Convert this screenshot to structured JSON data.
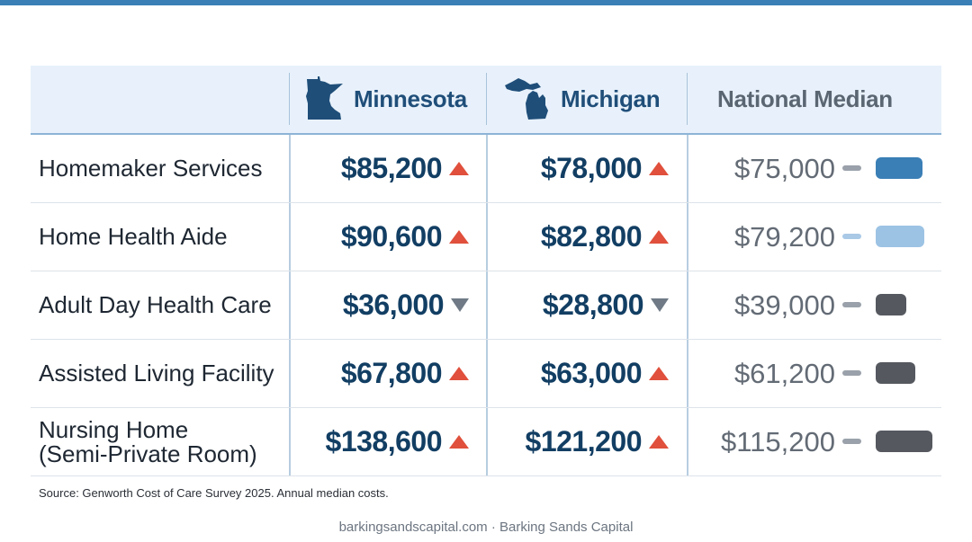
{
  "header": {
    "col1": "Minnesota",
    "col2": "Michigan",
    "col3": "National Median"
  },
  "rows": [
    {
      "label": [
        "Homemaker Services"
      ],
      "mn": "$85,200",
      "mn_trend": "up",
      "mi": "$78,000",
      "mi_trend": "up",
      "nat": "$75,000",
      "dash_color": "#9aa1aa",
      "bar_color": "#3a7fb6"
    },
    {
      "label": [
        "Home Health Aide"
      ],
      "mn": "$90,600",
      "mn_trend": "up",
      "mi": "$82,800",
      "mi_trend": "up",
      "nat": "$79,200",
      "dash_color": "#a9c9e6",
      "bar_color": "#9cc3e4"
    },
    {
      "label": [
        "Adult Day Health Care"
      ],
      "mn": "$36,000",
      "mn_trend": "down",
      "mi": "$28,800",
      "mi_trend": "down",
      "nat": "$39,000",
      "dash_color": "#9aa1aa",
      "bar_color": "#55585f"
    },
    {
      "label": [
        "Assisted Living Facility"
      ],
      "mn": "$67,800",
      "mn_trend": "up",
      "mi": "$63,000",
      "mi_trend": "up",
      "nat": "$61,200",
      "dash_color": "#9aa1aa",
      "bar_color": "#55585f"
    },
    {
      "label": [
        "Nursing Home",
        "(Semi-Private Room)"
      ],
      "mn": "$138,600",
      "mn_trend": "up",
      "mi": "$121,200",
      "mi_trend": "up",
      "nat": "$115,200",
      "dash_color": "#9aa1aa",
      "bar_color": "#55585f"
    }
  ],
  "source": "Source: Genworth Cost of Care Survey 2025. Annual median costs.",
  "footer": "barkingsandscapital.com · Barking Sands Capital",
  "icons": {
    "col1": "minnesota-map-icon",
    "col2": "michigan-map-icon",
    "up": "triangle-up-icon",
    "down": "triangle-down-icon"
  },
  "colors": {
    "accent": "#3a7fb6",
    "value_text": "#123e63",
    "up": "#e0503c",
    "down": "#6f7a86"
  }
}
